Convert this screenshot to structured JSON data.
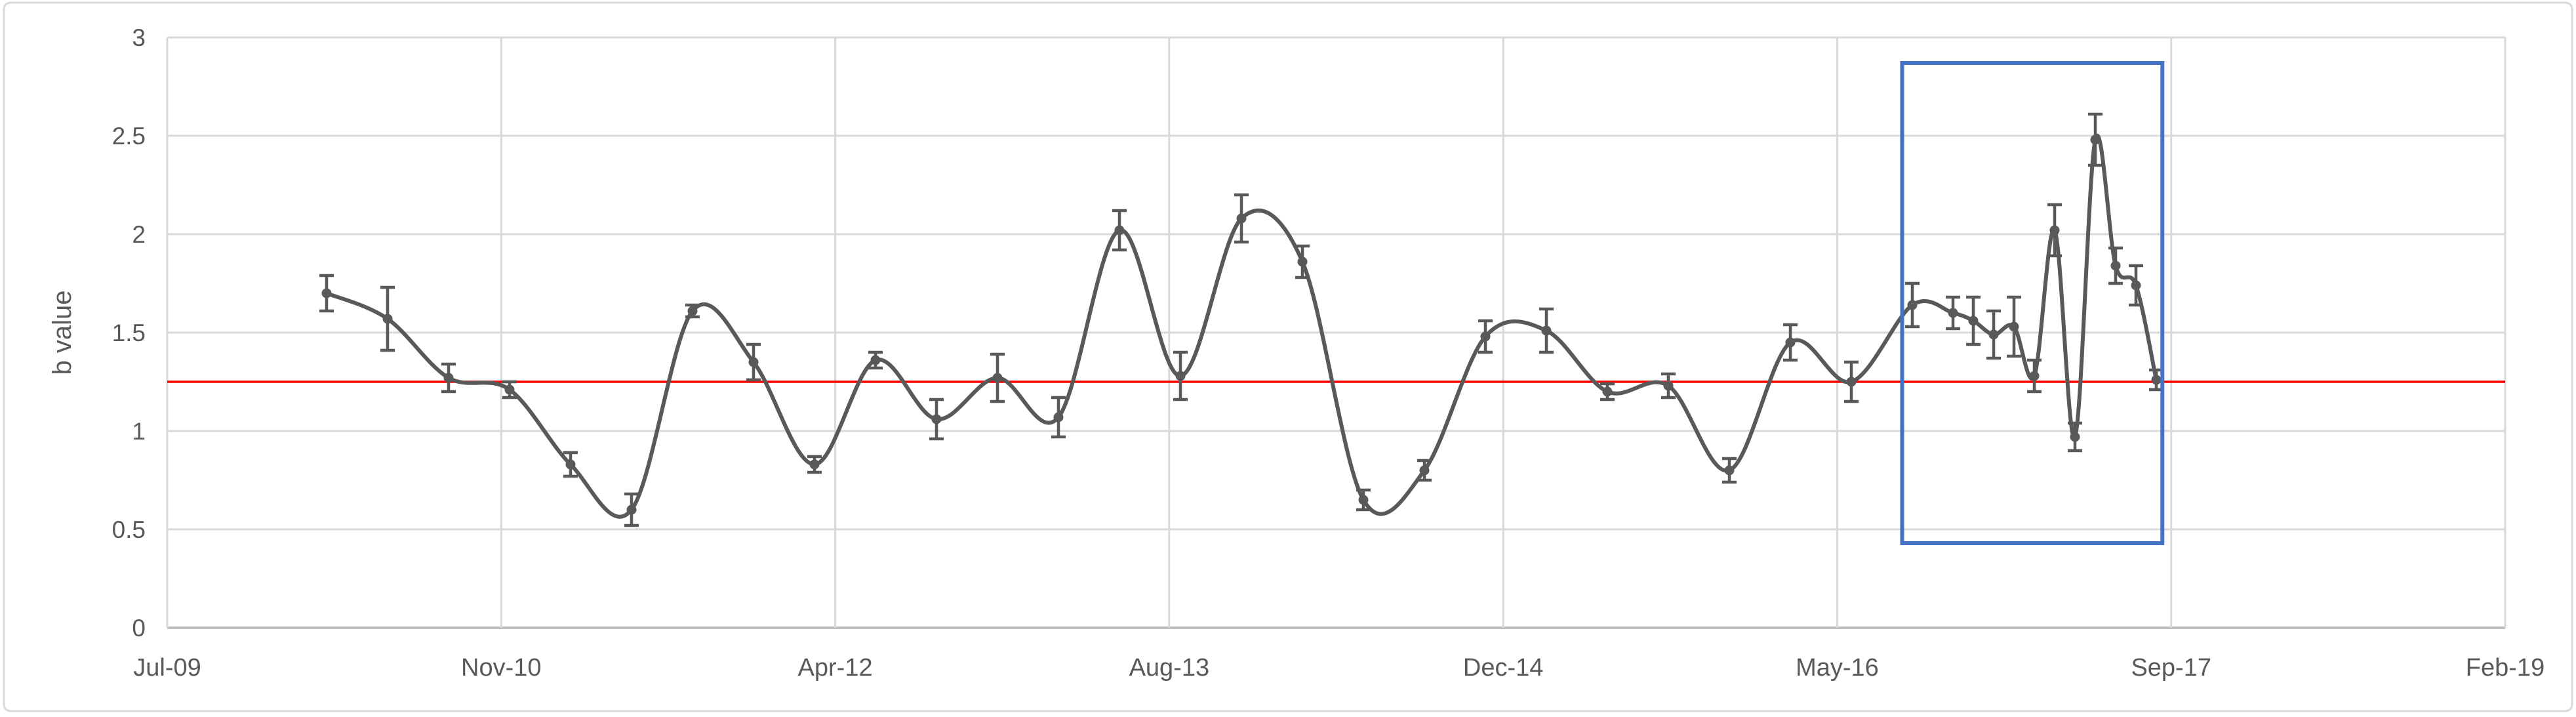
{
  "chart_data": {
    "type": "line",
    "title": "",
    "xlabel": "",
    "ylabel": "b value",
    "ylim": [
      0,
      3
    ],
    "grid": true,
    "legend": "none",
    "yticks": [
      {
        "label": "0",
        "value": 0
      },
      {
        "label": "0.5",
        "value": 0.5
      },
      {
        "label": "1",
        "value": 1
      },
      {
        "label": "1.5",
        "value": 1.5
      },
      {
        "label": "2",
        "value": 2
      },
      {
        "label": "2.5",
        "value": 2.5
      },
      {
        "label": "3",
        "value": 3
      }
    ],
    "xticks": [
      {
        "label": "Jul-09",
        "month": 0
      },
      {
        "label": "Nov-10",
        "month": 16
      },
      {
        "label": "Apr-12",
        "month": 33
      },
      {
        "label": "Aug-13",
        "month": 49
      },
      {
        "label": "Dec-14",
        "month": 65
      },
      {
        "label": "May-16",
        "month": 82
      },
      {
        "label": "Sep-17",
        "month": 98
      },
      {
        "label": "Feb-19",
        "month": 115
      }
    ],
    "reference_line": {
      "value": 1.25,
      "color": "#FF0000"
    },
    "highlight_box": {
      "x_range_months_from_jul09": [
        85.5,
        98.3
      ],
      "y_range": [
        0.43,
        2.87
      ],
      "color": "#4472C4"
    },
    "series": [
      {
        "name": "b value",
        "marker": "circle",
        "smoothed": true,
        "error_bars": true,
        "points": [
          {
            "date": "Mar-10",
            "month": 8,
            "value": 1.7,
            "err": 0.09
          },
          {
            "date": "Jun-10",
            "month": 11,
            "value": 1.57,
            "err": 0.16
          },
          {
            "date": "Sep-10",
            "month": 14,
            "value": 1.27,
            "err": 0.07
          },
          {
            "date": "Dec-10",
            "month": 17,
            "value": 1.21,
            "err": 0.04
          },
          {
            "date": "Mar-11",
            "month": 20,
            "value": 0.83,
            "err": 0.06
          },
          {
            "date": "Jun-11",
            "month": 23,
            "value": 0.6,
            "err": 0.08
          },
          {
            "date": "Sep-11",
            "month": 26,
            "value": 1.61,
            "err": 0.03
          },
          {
            "date": "Dec-11",
            "month": 29,
            "value": 1.35,
            "err": 0.09
          },
          {
            "date": "Mar-12",
            "month": 32,
            "value": 0.83,
            "err": 0.04
          },
          {
            "date": "Jun-12",
            "month": 35,
            "value": 1.36,
            "err": 0.04
          },
          {
            "date": "Sep-12",
            "month": 38,
            "value": 1.06,
            "err": 0.1
          },
          {
            "date": "Dec-12",
            "month": 41,
            "value": 1.27,
            "err": 0.12
          },
          {
            "date": "Mar-13",
            "month": 44,
            "value": 1.07,
            "err": 0.1
          },
          {
            "date": "Jun-13",
            "month": 47,
            "value": 2.02,
            "err": 0.1
          },
          {
            "date": "Sep-13",
            "month": 50,
            "value": 1.28,
            "err": 0.12
          },
          {
            "date": "Dec-13",
            "month": 53,
            "value": 2.08,
            "err": 0.12
          },
          {
            "date": "Mar-14",
            "month": 56,
            "value": 1.86,
            "err": 0.08
          },
          {
            "date": "Jun-14",
            "month": 59,
            "value": 0.65,
            "err": 0.05
          },
          {
            "date": "Sep-14",
            "month": 62,
            "value": 0.8,
            "err": 0.05
          },
          {
            "date": "Dec-14",
            "month": 65,
            "value": 1.48,
            "err": 0.08
          },
          {
            "date": "Mar-15",
            "month": 68,
            "value": 1.51,
            "err": 0.11
          },
          {
            "date": "Jun-15",
            "month": 71,
            "value": 1.2,
            "err": 0.04
          },
          {
            "date": "Sep-15",
            "month": 74,
            "value": 1.23,
            "err": 0.06
          },
          {
            "date": "Dec-15",
            "month": 77,
            "value": 0.8,
            "err": 0.06
          },
          {
            "date": "Mar-16",
            "month": 80,
            "value": 1.45,
            "err": 0.09
          },
          {
            "date": "Jun-16",
            "month": 83,
            "value": 1.25,
            "err": 0.1
          },
          {
            "date": "Sep-16",
            "month": 86,
            "value": 1.64,
            "err": 0.11
          },
          {
            "date": "Nov-16",
            "month": 88,
            "value": 1.6,
            "err": 0.08
          },
          {
            "date": "Dec-16",
            "month": 89,
            "value": 1.56,
            "err": 0.12
          },
          {
            "date": "Jan-17",
            "month": 90,
            "value": 1.49,
            "err": 0.12
          },
          {
            "date": "Feb-17",
            "month": 91,
            "value": 1.53,
            "err": 0.15
          },
          {
            "date": "Mar-17",
            "month": 92,
            "value": 1.28,
            "err": 0.08
          },
          {
            "date": "Apr-17",
            "month": 93,
            "value": 2.02,
            "err": 0.13
          },
          {
            "date": "May-17",
            "month": 94,
            "value": 0.97,
            "err": 0.07
          },
          {
            "date": "Jun-17",
            "month": 95,
            "value": 2.48,
            "err": 0.13
          },
          {
            "date": "Jul-17",
            "month": 96,
            "value": 1.84,
            "err": 0.09
          },
          {
            "date": "Aug-17",
            "month": 97,
            "value": 1.74,
            "err": 0.1
          },
          {
            "date": "Sep-17",
            "month": 98,
            "value": 1.26,
            "err": 0.05
          }
        ]
      }
    ],
    "colors": {
      "series": "#595959",
      "marker": "#595959",
      "error_bar": "#595959",
      "gridline": "#D9D9D9",
      "axis_line": "#BFBFBF",
      "text": "#595959",
      "reference_line": "#FF0000",
      "highlight_box": "#4472C4",
      "frame_border": "#D9D9D9",
      "background": "#FFFFFF"
    }
  }
}
